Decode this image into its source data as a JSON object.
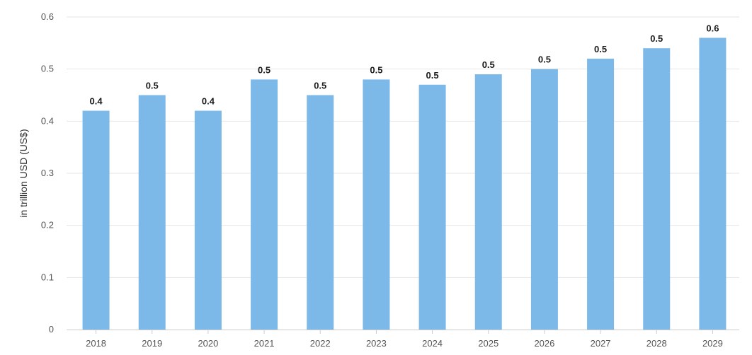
{
  "chart_data": {
    "type": "bar",
    "categories": [
      "2018",
      "2019",
      "2020",
      "2021",
      "2022",
      "2023",
      "2024",
      "2025",
      "2026",
      "2027",
      "2028",
      "2029"
    ],
    "values": [
      0.42,
      0.45,
      0.42,
      0.48,
      0.45,
      0.48,
      0.47,
      0.49,
      0.5,
      0.52,
      0.54,
      0.56
    ],
    "data_labels": [
      "0.4",
      "0.5",
      "0.4",
      "0.5",
      "0.5",
      "0.5",
      "0.5",
      "0.5",
      "0.5",
      "0.5",
      "0.5",
      "0.6"
    ],
    "title": "",
    "xlabel": "",
    "ylabel": "in trillion USD (US$)",
    "ylim": [
      0,
      0.6
    ],
    "yticks": [
      "0",
      "0.1",
      "0.2",
      "0.3",
      "0.4",
      "0.5",
      "0.6"
    ],
    "grid": true,
    "legend": "none",
    "bar_color": "#7db9e8"
  }
}
